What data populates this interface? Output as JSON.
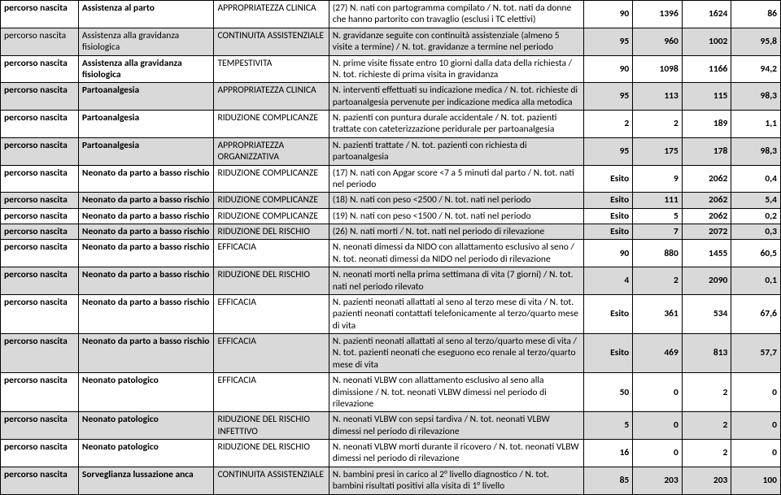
{
  "rows": [
    {
      "shade": false,
      "bold": true,
      "c1": "percorso nascita",
      "c2": "Assistenza al parto",
      "c3": "APPROPRIATEZZA CLINICA",
      "c4": "(27) N. nati con partogramma compilato / N. tot. nati da donne che hanno partorito con travaglio (esclusi i TC elettivi)",
      "v1": "90",
      "v2": "1396",
      "v3": "1624",
      "v4": "86"
    },
    {
      "shade": true,
      "bold": false,
      "c1": "percorso nascita",
      "c2": "Assistenza alla gravidanza fisiologica",
      "c3": "CONTINUITA ASSISTENZIALE",
      "c4": "N. gravidanze seguite con continuità assistenziale (almeno 5 visite a termine) / N. tot. gravidanze a termine nel periodo",
      "v1": "95",
      "v2": "960",
      "v3": "1002",
      "v4": "95,8"
    },
    {
      "shade": false,
      "bold": true,
      "c1": "percorso nascita",
      "c2": "Assistenza alla gravidanza fisiologica",
      "c3": "TEMPESTIVITA",
      "c4": "N. prime visite fissate entro 10 giorni dalla data della richiesta / N. tot. richieste di prima visita in gravidanza",
      "v1": "90",
      "v2": "1098",
      "v3": "1166",
      "v4": "94,2"
    },
    {
      "shade": true,
      "bold": true,
      "c1": "percorso nascita",
      "c2": "Partoanalgesia",
      "c3": "APPROPRIATEZZA CLINICA",
      "c4": "N. interventi effettuati su indicazione medica / N. tot. richieste di partoanalgesia pervenute per indicazione medica alla metodica",
      "v1": "95",
      "v2": "113",
      "v3": "115",
      "v4": "98,3"
    },
    {
      "shade": false,
      "bold": true,
      "c1": "percorso nascita",
      "c2": "Partoanalgesia",
      "c3": "RIDUZIONE COMPLICANZE",
      "c4": "N. pazienti con puntura durale accidentale / N. tot. pazienti trattate con cateterizzazione peridurale per partoanalgesia",
      "v1": "2",
      "v2": "2",
      "v3": "189",
      "v4": "1,1"
    },
    {
      "shade": true,
      "bold": true,
      "c1": "percorso nascita",
      "c2": "Partoanalgesia",
      "c3": "APPROPRIATEZZA ORGANIZZATIVA",
      "c4": "N. pazienti trattate / N. tot. pazienti con richiesta di partoanalgesia",
      "v1": "95",
      "v2": "175",
      "v3": "178",
      "v4": "98,3"
    },
    {
      "shade": false,
      "bold": true,
      "c1": "percorso nascita",
      "c2": "Neonato da parto a basso rischio",
      "c3": "RIDUZIONE COMPLICANZE",
      "c4": "(17) N. nati con Apgar score <7 a 5 minuti dal parto / N. tot. nati nel periodo",
      "v1": "Esito",
      "v2": "9",
      "v3": "2062",
      "v4": "0,4"
    },
    {
      "shade": true,
      "bold": true,
      "c1": "percorso nascita",
      "c2": "Neonato da parto a basso rischio",
      "c3": "RIDUZIONE COMPLICANZE",
      "c4": "(18) N. nati con peso <2500 / N. tot. nati nel periodo",
      "v1": "Esito",
      "v2": "111",
      "v3": "2062",
      "v4": "5,4"
    },
    {
      "shade": false,
      "bold": true,
      "c1": "percorso nascita",
      "c2": "Neonato da parto a basso rischio",
      "c3": "RIDUZIONE COMPLICANZE",
      "c4": "(19) N. nati con peso <1500 / N. tot. nati nel periodo",
      "v1": "Esito",
      "v2": "5",
      "v3": "2062",
      "v4": "0,2"
    },
    {
      "shade": true,
      "bold": true,
      "c1": "percorso nascita",
      "c2": "Neonato da parto a basso rischio",
      "c3": "RIDUZIONE DEL RISCHIO",
      "c4": "(26) N. nati morti / N. tot. nati nel periodo di rilevazione",
      "v1": "Esito",
      "v2": "7",
      "v3": "2072",
      "v4": "0,3"
    },
    {
      "shade": false,
      "bold": true,
      "c1": "percorso nascita",
      "c2": "Neonato da parto a basso rischio",
      "c3": "EFFICACIA",
      "c4": "N. neonati dimessi da NIDO con allattamento esclusivo al seno / N. tot. neonati dimessi da NIDO nel periodo di rilevazione",
      "v1": "90",
      "v2": "880",
      "v3": "1455",
      "v4": "60,5"
    },
    {
      "shade": true,
      "bold": true,
      "c1": "percorso nascita",
      "c2": "Neonato da parto a basso rischio",
      "c3": "RIDUZIONE DEL RISCHIO",
      "c4": "N. neonati morti nella prima settimana di vita (7 giorni) / N. tot. nati nel periodo rilevato",
      "v1": "4",
      "v2": "2",
      "v3": "2090",
      "v4": "0,1"
    },
    {
      "shade": false,
      "bold": true,
      "c1": "percorso nascita",
      "c2": "Neonato da parto a basso rischio",
      "c3": "EFFICACIA",
      "c4": "N. pazienti neonati allattati al seno al terzo mese di vita / N. tot. pazienti neonati contattati telefonicamente al terzo/quarto mese di vita",
      "v1": "Esito",
      "v2": "361",
      "v3": "534",
      "v4": "67,6"
    },
    {
      "shade": true,
      "bold": true,
      "c1": "percorso nascita",
      "c2": "Neonato da parto a basso rischio",
      "c3": "EFFICACIA",
      "c4": "N. pazienti neonati allattati al seno al terzo/quarto mese di vita / N. tot. pazienti neonati che eseguono eco renale al terzo/quarto mese di vita",
      "v1": "Esito",
      "v2": "469",
      "v3": "813",
      "v4": "57,7"
    },
    {
      "shade": false,
      "bold": true,
      "c1": "percorso nascita",
      "c2": "Neonato patologico",
      "c3": "EFFICACIA",
      "c4": "N. neonati VLBW con allattamento esclusivo al seno alla dimissione / N. tot. neonati VLBW dimessi nel periodo di rilevazione",
      "v1": "50",
      "v2": "0",
      "v3": "2",
      "v4": "0"
    },
    {
      "shade": true,
      "bold": true,
      "c1": "percorso nascita",
      "c2": "Neonato patologico",
      "c3": "RIDUZIONE DEL RISCHIO INFETTIVO",
      "c4": "N. neonati VLBW con sepsi tardiva / N. tot. neonati VLBW dimessi nel periodo di rilevazione",
      "v1": "5",
      "v2": "0",
      "v3": "2",
      "v4": "0"
    },
    {
      "shade": false,
      "bold": true,
      "c1": "percorso nascita",
      "c2": "Neonato patologico",
      "c3": "RIDUZIONE DEL RISCHIO",
      "c4": "N. neonati VLBW morti durante il ricovero / N. tot. neonati VLBW dimessi nel periodo di rilevazione",
      "v1": "16",
      "v2": "0",
      "v3": "2",
      "v4": "0"
    },
    {
      "shade": true,
      "bold": true,
      "c1": "percorso nascita",
      "c2": "Sorveglianza lussazione anca",
      "c3": "CONTINUITA ASSISTENZIALE",
      "c4": "N. bambini presi in carico al 2° livello diagnostico / N. tot. bambini risultati positivi alla visita di 1° livello",
      "v1": "85",
      "v2": "203",
      "v3": "203",
      "v4": "100"
    }
  ]
}
